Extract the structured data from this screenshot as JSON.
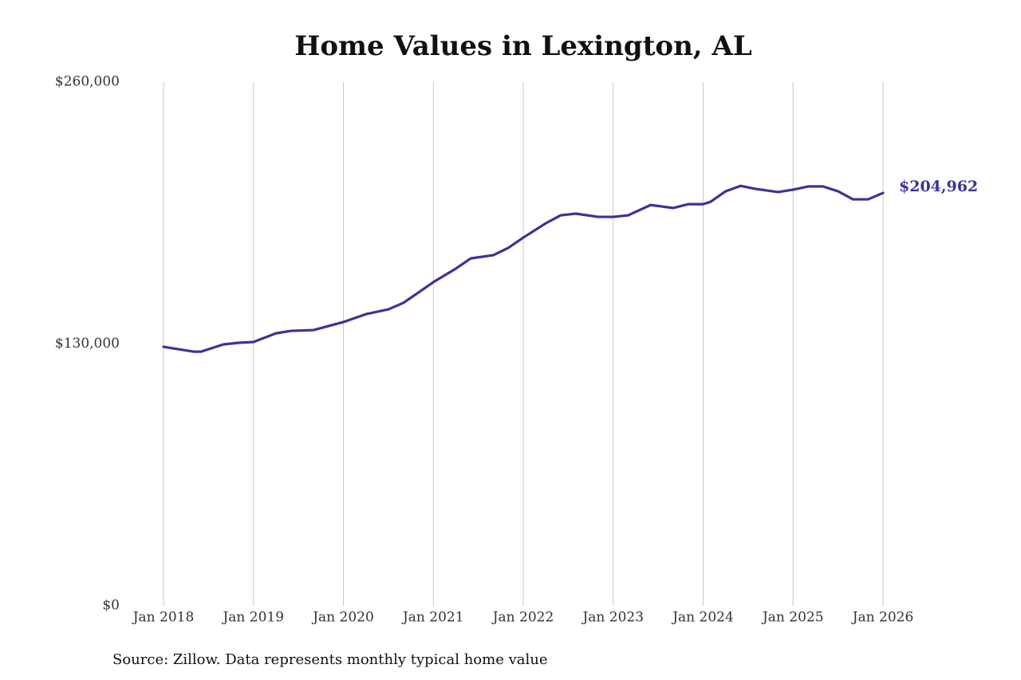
{
  "chart_data": {
    "type": "line",
    "title": "Home Values in Lexington, AL",
    "source": "Source: Zillow. Data represents monthly typical home value",
    "x": [
      "2018-01",
      "2018-03",
      "2018-05",
      "2018-06",
      "2018-09",
      "2018-11",
      "2019-01",
      "2019-04",
      "2019-06",
      "2019-09",
      "2020-01",
      "2020-04",
      "2020-07",
      "2020-09",
      "2020-11",
      "2021-01",
      "2021-04",
      "2021-06",
      "2021-09",
      "2021-11",
      "2022-01",
      "2022-04",
      "2022-06",
      "2022-08",
      "2022-11",
      "2023-01",
      "2023-03",
      "2023-06",
      "2023-09",
      "2023-11",
      "2024-01",
      "2024-02",
      "2024-04",
      "2024-06",
      "2024-08",
      "2024-11",
      "2025-01",
      "2025-03",
      "2025-05",
      "2025-07",
      "2025-09",
      "2025-11",
      "2026-01"
    ],
    "series": [
      {
        "color": "#3b3494",
        "values": [
          128600,
          127400,
          126200,
          126200,
          129800,
          130600,
          131000,
          135300,
          136500,
          136900,
          140900,
          144800,
          147200,
          150400,
          155500,
          160700,
          167400,
          172500,
          174100,
          177700,
          182800,
          189900,
          193900,
          194700,
          193100,
          193100,
          193900,
          199000,
          197500,
          199400,
          199400,
          200600,
          205800,
          208500,
          207000,
          205400,
          206600,
          208200,
          208200,
          205800,
          201800,
          201800,
          204962
        ],
        "value_labels": [
          null,
          null,
          null,
          null,
          null,
          null,
          null,
          null,
          null,
          null,
          null,
          null,
          null,
          null,
          null,
          null,
          null,
          null,
          null,
          null,
          null,
          null,
          null,
          null,
          null,
          null,
          null,
          null,
          null,
          null,
          null,
          null,
          null,
          null,
          null,
          null,
          null,
          null,
          null,
          null,
          null,
          null,
          "$204,962"
        ]
      }
    ],
    "xlim": [
      "2018-01",
      "2026-01"
    ],
    "xticks": [
      {
        "value": "2018-01",
        "label": "Jan 2018"
      },
      {
        "value": "2019-01",
        "label": "Jan 2019"
      },
      {
        "value": "2020-01",
        "label": "Jan 2020"
      },
      {
        "value": "2021-01",
        "label": "Jan 2021"
      },
      {
        "value": "2022-01",
        "label": "Jan 2022"
      },
      {
        "value": "2023-01",
        "label": "Jan 2023"
      },
      {
        "value": "2024-01",
        "label": "Jan 2024"
      },
      {
        "value": "2025-01",
        "label": "Jan 2025"
      },
      {
        "value": "2026-01",
        "label": "Jan 2026"
      }
    ],
    "ylim": [
      0,
      260000
    ],
    "yticks": [
      {
        "value": 0,
        "label": "$0"
      },
      {
        "value": 130000,
        "label": "$130,000"
      },
      {
        "value": 260000,
        "label": "$260,000"
      }
    ],
    "grid": "x"
  }
}
